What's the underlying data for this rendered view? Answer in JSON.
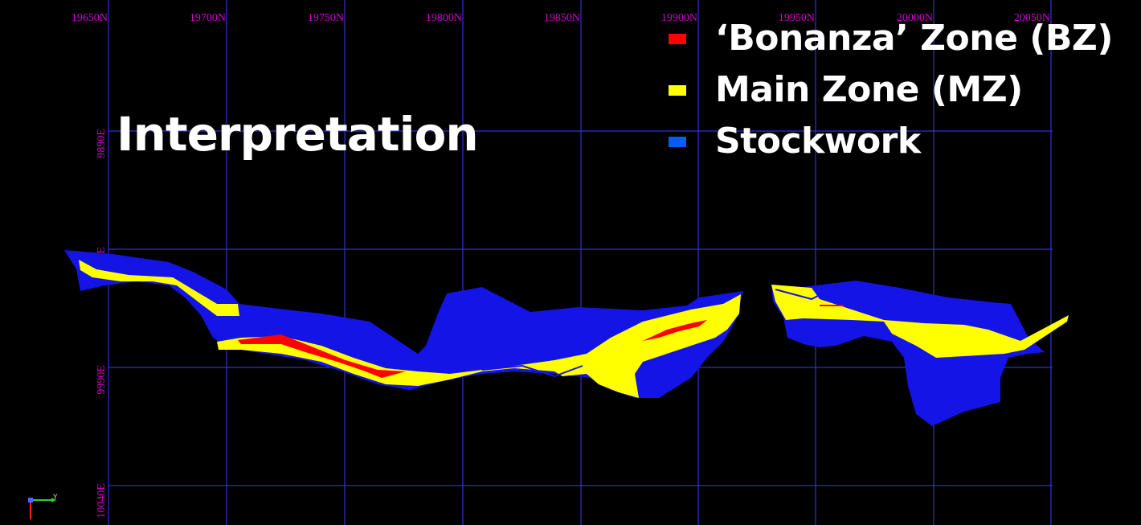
{
  "view": {
    "title": "Interpretation",
    "north_labels": [
      "19650N",
      "19700N",
      "19750N",
      "19800N",
      "19850N",
      "19900N",
      "19950N",
      "20000N",
      "20050N"
    ],
    "east_labels": [
      "9890E",
      "9940E",
      "9990E",
      "10040E"
    ],
    "axis_y_label": "Y"
  },
  "legend": {
    "items": [
      {
        "label": "‘Bonanza’ Zone (BZ)",
        "color": "#ff0000"
      },
      {
        "label": "Main Zone (MZ)",
        "color": "#ffff00"
      },
      {
        "label": "Stockwork",
        "color": "#0a5cf0"
      }
    ]
  },
  "colors": {
    "background": "#000000",
    "grid": "#3a3aff",
    "grid_label": "#d000d0",
    "stockwork_fill": "#1414e6",
    "main_zone_fill": "#ffff00",
    "bonanza_fill": "#ff0000"
  }
}
